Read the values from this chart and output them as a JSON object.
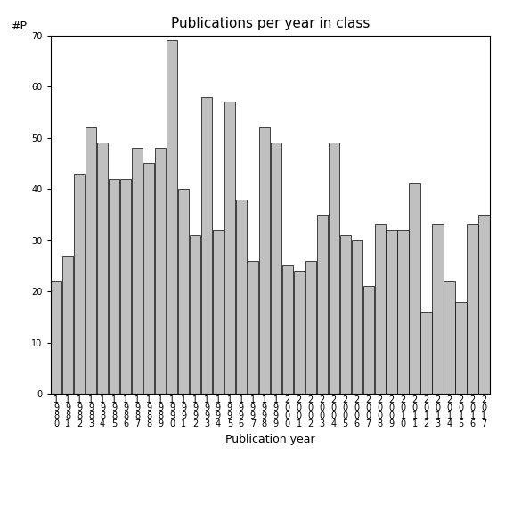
{
  "title": "Publications per year in class",
  "xlabel": "Publication year",
  "ylabel": "#P",
  "years": [
    1980,
    1981,
    1982,
    1983,
    1984,
    1985,
    1986,
    1987,
    1988,
    1989,
    1990,
    1991,
    1992,
    1993,
    1994,
    1995,
    1996,
    1997,
    1998,
    1999,
    2000,
    2001,
    2002,
    2003,
    2004,
    2005,
    2006,
    2007,
    2008,
    2009,
    2010,
    2011,
    2012,
    2013,
    2014,
    2015,
    2016,
    2017
  ],
  "values": [
    22,
    27,
    43,
    52,
    49,
    42,
    42,
    48,
    45,
    48,
    69,
    40,
    31,
    58,
    32,
    57,
    38,
    26,
    52,
    49,
    25,
    24,
    26,
    35,
    49,
    31,
    30,
    21,
    33,
    32,
    32,
    41,
    16,
    33,
    22,
    18,
    33,
    35
  ],
  "bar_color": "#c0c0c0",
  "bar_edge_color": "#000000",
  "bar_edge_width": 0.5,
  "ylim": [
    0,
    70
  ],
  "yticks": [
    0,
    10,
    20,
    30,
    40,
    50,
    60,
    70
  ],
  "background_color": "#ffffff",
  "title_fontsize": 11,
  "axis_label_fontsize": 9,
  "tick_fontsize": 7
}
